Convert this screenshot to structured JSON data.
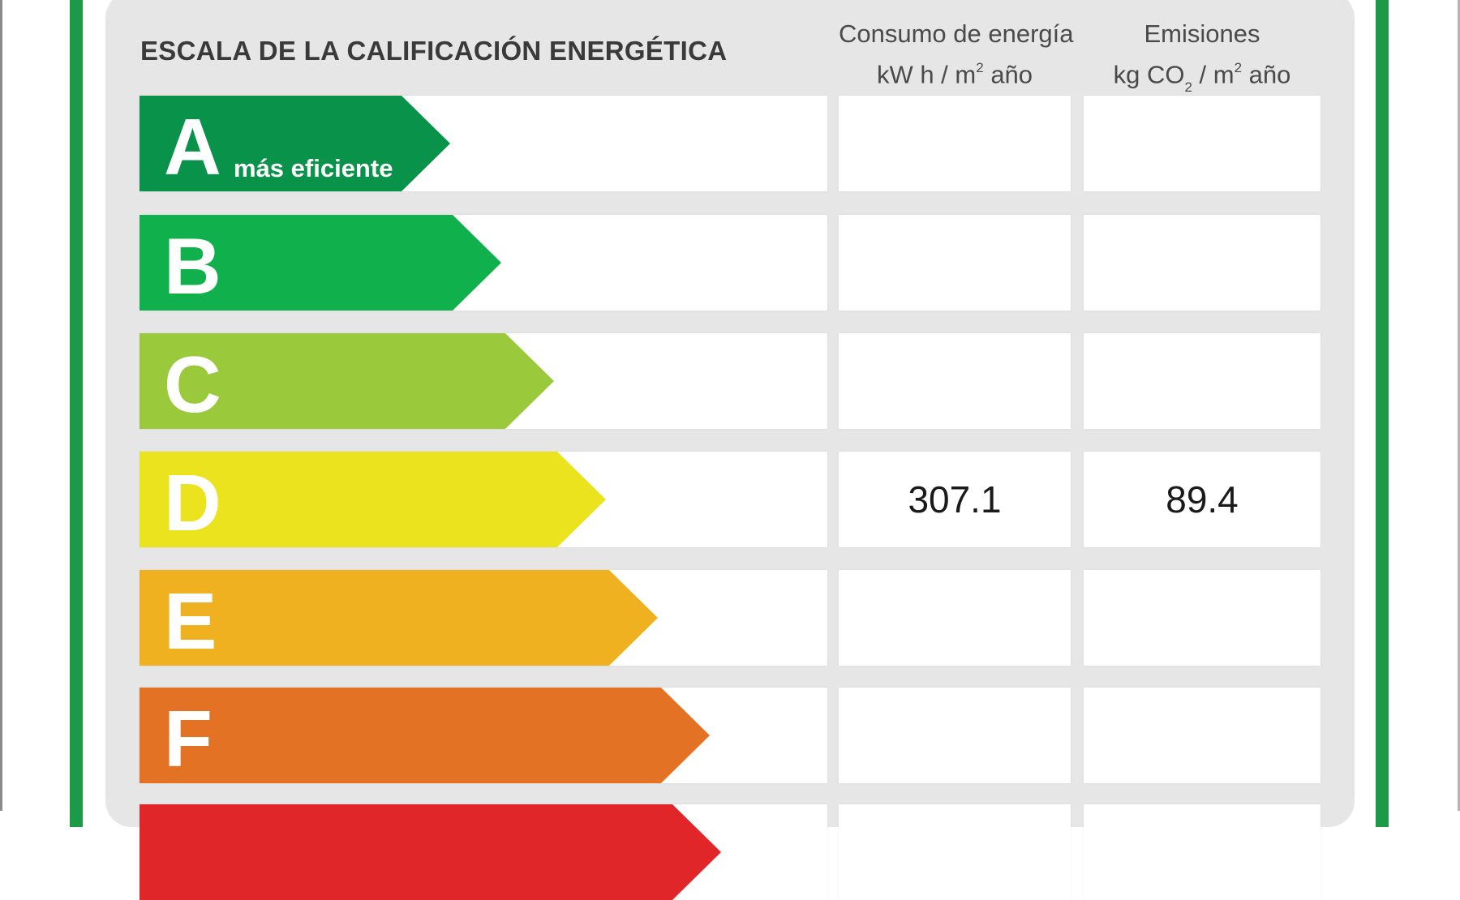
{
  "title": "ESCALA DE LA CALIFICACIÓN ENERGÉTICA",
  "columns": {
    "consumo": {
      "line1": "Consumo de energía",
      "unit_a": "kW h  / m",
      "unit_sup": "2",
      "unit_b": " año"
    },
    "emisiones": {
      "line1": "Emisiones",
      "unit_a": "kg CO",
      "unit_sub": "2",
      "unit_mid": " / m",
      "unit_sup": "2",
      "unit_b": " año"
    }
  },
  "ratings": [
    {
      "letter": "A",
      "label": "más eficiente",
      "color": "#08924a",
      "consumo": "",
      "emisiones": ""
    },
    {
      "letter": "B",
      "label": "",
      "color": "#10b04c",
      "consumo": "",
      "emisiones": ""
    },
    {
      "letter": "C",
      "label": "",
      "color": "#9ac93c",
      "consumo": "",
      "emisiones": ""
    },
    {
      "letter": "D",
      "label": "",
      "color": "#eae31e",
      "consumo": "307.1",
      "emisiones": "89.4"
    },
    {
      "letter": "E",
      "label": "",
      "color": "#efb120",
      "consumo": "",
      "emisiones": ""
    },
    {
      "letter": "F",
      "label": "",
      "color": "#e37225",
      "consumo": "",
      "emisiones": ""
    },
    {
      "letter": "",
      "label": "",
      "color": "#e1262a",
      "consumo": "",
      "emisiones": ""
    }
  ]
}
